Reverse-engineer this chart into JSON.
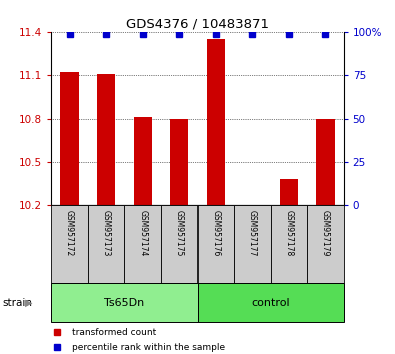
{
  "title": "GDS4376 / 10483871",
  "samples": [
    "GSM957172",
    "GSM957173",
    "GSM957174",
    "GSM957175",
    "GSM957176",
    "GSM957177",
    "GSM957178",
    "GSM957179"
  ],
  "red_values": [
    11.12,
    11.11,
    10.81,
    10.8,
    11.35,
    10.2,
    10.38,
    10.8
  ],
  "ylim_left": [
    10.2,
    11.4
  ],
  "ylim_right": [
    0,
    100
  ],
  "yticks_left": [
    10.2,
    10.5,
    10.8,
    11.1,
    11.4
  ],
  "yticks_right": [
    0,
    25,
    50,
    75,
    100
  ],
  "right_tick_labels": [
    "0",
    "25",
    "50",
    "75",
    "100%"
  ],
  "groups": [
    {
      "label": "Ts65Dn",
      "start": 0,
      "end": 3,
      "color": "#90EE90"
    },
    {
      "label": "control",
      "start": 4,
      "end": 7,
      "color": "#55DD55"
    }
  ],
  "group_label": "strain",
  "bar_color": "#CC0000",
  "blue_color": "#0000CC",
  "tick_color_left": "#CC0000",
  "tick_color_right": "#0000CC",
  "sample_box_color": "#CCCCCC",
  "legend_red_label": "transformed count",
  "legend_blue_label": "percentile rank within the sample"
}
